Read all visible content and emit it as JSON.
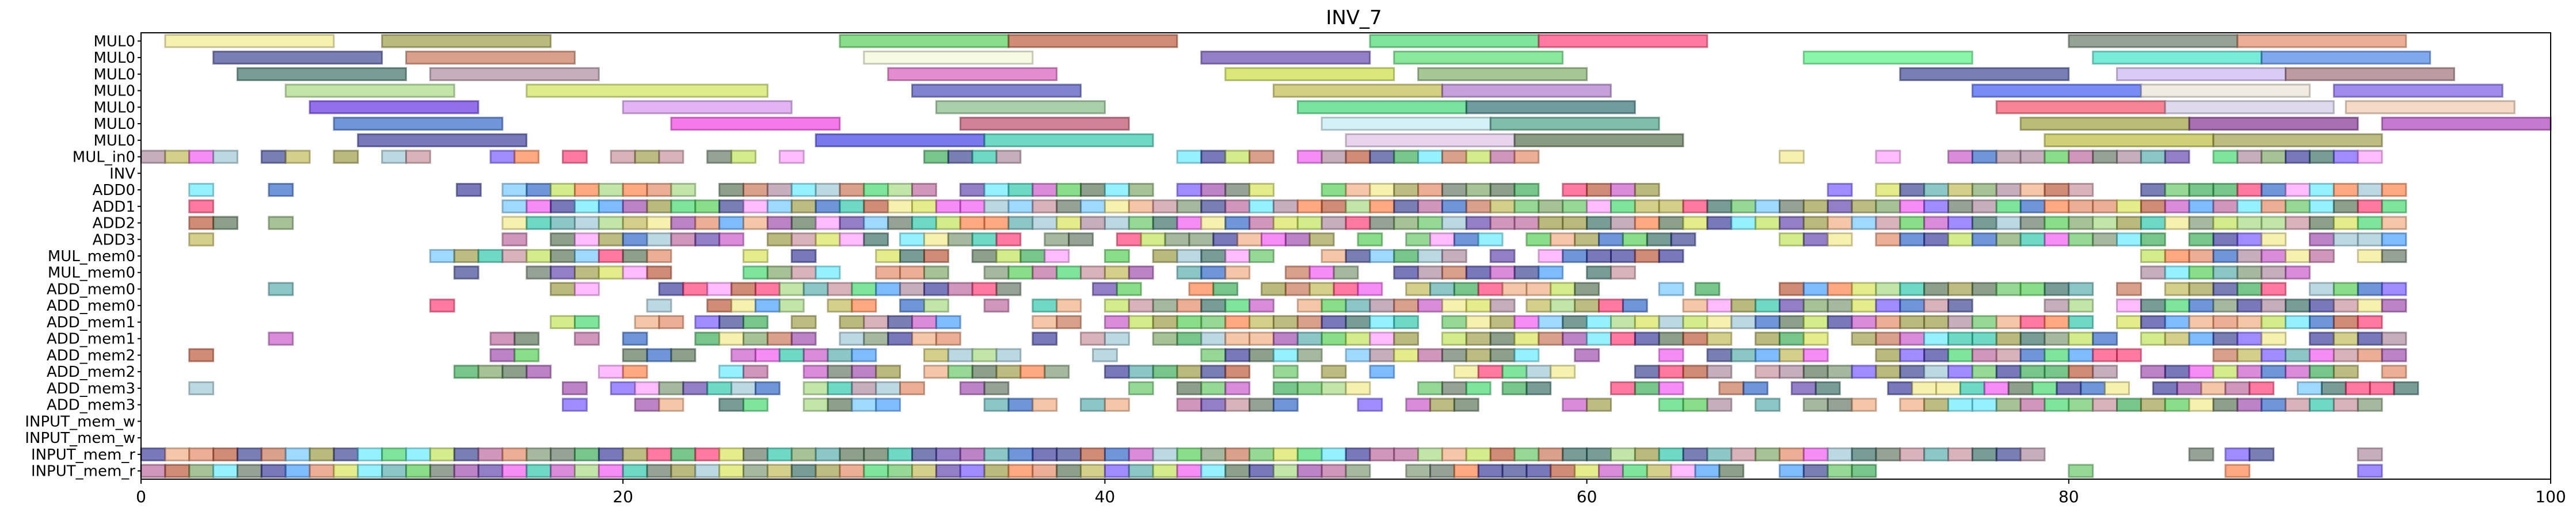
{
  "chart_data": {
    "type": "gantt",
    "title": "INV_7",
    "xlabel": "",
    "ylabel": "",
    "xlim": [
      0,
      100
    ],
    "xticks": [
      0,
      20,
      40,
      60,
      80,
      100
    ],
    "grid": false,
    "rows": [
      "MUL0",
      "MUL0",
      "MUL0",
      "MUL0",
      "MUL0",
      "MUL0",
      "MUL0",
      "MUL_in0",
      "INV",
      "ADD0",
      "ADD1",
      "ADD2",
      "ADD3",
      "MUL_mem0",
      "MUL_mem0",
      "ADD_mem0",
      "ADD_mem0",
      "ADD_mem1",
      "ADD_mem1",
      "ADD_mem2",
      "ADD_mem2",
      "ADD_mem3",
      "ADD_mem3",
      "INPUT_mem_w",
      "INPUT_mem_w",
      "INPUT_mem_r",
      "INPUT_mem_r"
    ],
    "palette": [
      "#f2e87a",
      "#8c8c2a",
      "#3cc83c",
      "#b0401a",
      "#2ad25a",
      "#ff2060",
      "#506450",
      "#e07a50",
      "#202880",
      "#c06040",
      "#1e5a50",
      "#a07890",
      "#d2e040",
      "#9ad470",
      "#4a2aa0",
      "#b8e040",
      "#6a8a60",
      "#c040c0",
      "#40a0a0",
      "#6040ff",
      "#1050c0",
      "#f040f0",
      "#10c0a0",
      "#6a9a50",
      "#50e8ff",
      "#50c050",
      "#406040",
      "#b05090",
      "#1e1e8c",
      "#c08090",
      "#f0a070",
      "#ff90ff",
      "#909030",
      "#9030a0",
      "#20a040",
      "#ff7030",
      "#90c0d0",
      "#60c0ff",
      "#2a90ff",
      "#b8b040"
    ],
    "sparse": {
      "ADD0": [
        2.0,
        5.3,
        13.1
      ],
      "ADD1": [
        2.0
      ],
      "ADD2": [
        2.0,
        3.0,
        5.3
      ],
      "ADD3": [
        2.0
      ],
      "MUL_mem0": [],
      "ADD_mem0": [
        5.3
      ],
      "ADD_mem1": [
        5.3
      ],
      "ADD_mem2": [
        2.0
      ],
      "ADD_mem3": [
        2.0
      ],
      "INPUT_mem_w": [],
      "INPUT_mem_w2": []
    },
    "dense": {
      "MUL_in0": [
        [
          0,
          12.5
        ],
        [
          13.5,
          25.5
        ],
        [
          26.5,
          27.5
        ],
        [
          32.5,
          36.5
        ],
        [
          43.0,
          58.5
        ],
        [
          68.0,
          69.0
        ],
        [
          72.0,
          73.0
        ],
        [
          75.0,
          93.0
        ]
      ],
      "ADD0": [
        [
          15.0,
          47.0
        ],
        [
          48.0,
          63.5
        ],
        [
          68.0,
          94.5
        ]
      ],
      "ADD1": [
        [
          15.0,
          94.5
        ]
      ],
      "ADD2": [
        [
          15.0,
          94.5
        ]
      ],
      "ADD3": [
        [
          15.0,
          31.0
        ],
        [
          31.5,
          65.0
        ],
        [
          68.0,
          94.5
        ]
      ],
      "MUL_mem0": [
        [
          12.0,
          22.0
        ],
        [
          25.0,
          29.0
        ],
        [
          30.5,
          39.0
        ],
        [
          40.0,
          48.0
        ],
        [
          49.0,
          55.5
        ],
        [
          56.0,
          64.0
        ],
        [
          83.0,
          94.5
        ]
      ],
      "MUL_mem0b": [
        [
          12.0,
          14.0
        ],
        [
          16.0,
          22.0
        ],
        [
          25.0,
          29.0
        ],
        [
          30.5,
          34.0
        ],
        [
          35.0,
          42.0
        ],
        [
          43.0,
          46.5
        ],
        [
          47.5,
          51.0
        ],
        [
          52.0,
          59.0
        ],
        [
          60.0,
          62.0
        ],
        [
          83.0,
          90.5
        ]
      ],
      "ADD_mem0": [
        [
          17.0,
          19.5
        ],
        [
          21.5,
          37.0
        ],
        [
          39.5,
          52.0
        ],
        [
          52.5,
          61.0
        ],
        [
          63.0,
          64.0
        ],
        [
          64.5,
          65.5
        ],
        [
          67.0,
          94.5
        ]
      ],
      "ADD_mem0b": [
        [
          12.0,
          13.0
        ],
        [
          17.5,
          19.0
        ],
        [
          21.0,
          22.0
        ],
        [
          23.5,
          34.0
        ],
        [
          35.0,
          39.5
        ],
        [
          40.0,
          57.0
        ],
        [
          57.5,
          62.5
        ],
        [
          64.0,
          94.5
        ]
      ],
      "ADD_mem1": [
        [
          17.0,
          19.0
        ],
        [
          20.5,
          22.5
        ],
        [
          23.0,
          34.5
        ],
        [
          36.0,
          39.5
        ],
        [
          40.0,
          93.5
        ]
      ],
      "ADD_mem1b": [
        [
          14.5,
          17.0
        ],
        [
          18.0,
          21.0
        ],
        [
          22.0,
          34.0
        ],
        [
          36.0,
          38.0
        ],
        [
          39.0,
          41.0
        ],
        [
          42.0,
          94.5
        ]
      ],
      "ADD_mem2": [
        [
          14.5,
          17.5
        ],
        [
          20.0,
          23.5
        ],
        [
          24.5,
          31.0
        ],
        [
          32.5,
          36.5
        ],
        [
          39.5,
          40.5
        ],
        [
          43.0,
          58.0
        ],
        [
          59.5,
          62.0
        ],
        [
          63.0,
          94.5
        ]
      ],
      "ADD_mem2b": [
        [
          13.0,
          17.0
        ],
        [
          19.0,
          21.5
        ],
        [
          23.0,
          26.0
        ],
        [
          27.5,
          39.0
        ],
        [
          40.0,
          48.5
        ],
        [
          49.0,
          53.5
        ],
        [
          54.5,
          61.0
        ],
        [
          62.0,
          94.5
        ]
      ],
      "ADD_mem3": [
        [
          17.5,
          18.5
        ],
        [
          19.5,
          26.5
        ],
        [
          27.5,
          32.5
        ],
        [
          34.0,
          36.5
        ],
        [
          41.0,
          42.0
        ],
        [
          43.0,
          46.5
        ],
        [
          47.0,
          51.0
        ],
        [
          53.0,
          56.0
        ],
        [
          56.5,
          60.0
        ],
        [
          61.0,
          64.5
        ],
        [
          65.5,
          94.5
        ]
      ],
      "ADD_mem3b": [
        [
          17.5,
          18.5
        ],
        [
          20.5,
          22.5
        ],
        [
          24.0,
          26.0
        ],
        [
          27.5,
          32.0
        ],
        [
          35.0,
          38.0
        ],
        [
          39.0,
          41.5
        ],
        [
          43.0,
          48.0
        ],
        [
          50.5,
          56.0
        ],
        [
          58.0,
          61.5
        ],
        [
          63.0,
          94.5
        ]
      ],
      "INPUT_mem_r": [
        [
          0,
          79.0
        ],
        [
          85.0,
          86.0
        ],
        [
          86.5,
          88.5
        ],
        [
          92.0,
          93.0
        ]
      ],
      "INPUT_mem_r2": [
        [
          0,
          51.5
        ],
        [
          52.5,
          66.5
        ],
        [
          68.0,
          72.5
        ],
        [
          80.0,
          81.0
        ],
        [
          86.5,
          87.5
        ],
        [
          92.0,
          93.0
        ]
      ]
    },
    "mul_rows": [
      [
        [
          1.0,
          8.0,
          "#f2e87a"
        ],
        [
          10.0,
          17.0,
          "#8c8c2a"
        ],
        [
          29.0,
          36.0,
          "#3cc83c"
        ],
        [
          36.0,
          43.0,
          "#b0401a"
        ],
        [
          51.0,
          58.0,
          "#2ad25a"
        ],
        [
          58.0,
          65.0,
          "#ff2060"
        ],
        [
          80.0,
          87.0,
          "#506450"
        ],
        [
          87.0,
          94.0,
          "#e07a50"
        ]
      ],
      [
        [
          3.0,
          10.0,
          "#202880"
        ],
        [
          11.0,
          18.0,
          "#c06040"
        ],
        [
          30.0,
          37.0,
          "#f2f8d0"
        ],
        [
          44.0,
          51.0,
          "#4a2aa0"
        ],
        [
          52.0,
          59.0,
          "#3cd85c"
        ],
        [
          69.0,
          76.0,
          "#3cf070"
        ],
        [
          81.0,
          88.0,
          "#20e0c0"
        ],
        [
          88.0,
          95.0,
          "#2a70e0"
        ]
      ],
      [
        [
          4.0,
          11.0,
          "#1e5a50"
        ],
        [
          12.0,
          19.0,
          "#a07890"
        ],
        [
          31.0,
          38.0,
          "#d040b0"
        ],
        [
          45.0,
          52.0,
          "#c0d820"
        ],
        [
          53.0,
          60.0,
          "#6aa050"
        ],
        [
          73.0,
          80.0,
          "#1e2a80"
        ],
        [
          82.0,
          89.0,
          "#c0a8f0"
        ],
        [
          89.0,
          96.0,
          "#905a60"
        ]
      ],
      [
        [
          6.0,
          13.0,
          "#9ad470"
        ],
        [
          16.0,
          26.0,
          "#c8e040"
        ],
        [
          32.0,
          39.0,
          "#2a30b0"
        ],
        [
          47.0,
          54.0,
          "#b8b030"
        ],
        [
          54.0,
          61.0,
          "#a060c0"
        ],
        [
          76.0,
          83.0,
          "#2040f0"
        ],
        [
          83.0,
          90.0,
          "#e8e0d0"
        ],
        [
          91.0,
          98.0,
          "#6040e0"
        ]
      ],
      [
        [
          7.0,
          14.0,
          "#4a10e0"
        ],
        [
          20.0,
          27.0,
          "#d080f0"
        ],
        [
          33.0,
          40.0,
          "#70b070"
        ],
        [
          48.0,
          55.0,
          "#20d060"
        ],
        [
          55.0,
          62.0,
          "#105a60"
        ],
        [
          77.0,
          84.0,
          "#f03050"
        ],
        [
          84.0,
          91.0,
          "#c8c0e0"
        ],
        [
          91.5,
          98.5,
          "#f0c0a0"
        ]
      ],
      [
        [
          8.0,
          15.0,
          "#1050c0"
        ],
        [
          22.0,
          29.0,
          "#f020e0"
        ],
        [
          34.0,
          41.0,
          "#b03050"
        ],
        [
          49.0,
          56.0,
          "#b8e8f0"
        ],
        [
          56.0,
          63.0,
          "#2a9070"
        ],
        [
          78.0,
          85.0,
          "#909020"
        ],
        [
          85.0,
          92.0,
          "#6a1080"
        ],
        [
          93.0,
          100.0,
          "#a020b0"
        ]
      ],
      [
        [
          9.0,
          16.0,
          "#1e1e8c"
        ],
        [
          28.0,
          35.0,
          "#2020e0"
        ],
        [
          35.0,
          42.0,
          "#10c0a0"
        ],
        [
          50.0,
          57.0,
          "#d8b8e0"
        ],
        [
          57.0,
          64.0,
          "#3a5a30"
        ],
        [
          79.0,
          86.0,
          "#b0b020"
        ],
        [
          86.0,
          93.0,
          "#909030"
        ]
      ]
    ]
  }
}
